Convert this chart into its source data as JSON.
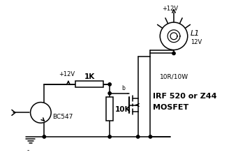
{
  "bg_color": "#ffffff",
  "line_color": "#000000",
  "label_1k": "1K",
  "label_10k": "10K",
  "label_bc547": "BC547",
  "label_resistor": "10R/10W",
  "label_mosfet": "IRF 520 or Z44",
  "label_mosfet2": "MOSFET",
  "label_l1": "L1",
  "label_12v_lamp": "12V",
  "label_v12_top": "+12V",
  "label_v12_left": "+12V",
  "label_b": "b",
  "label_gnd": "-"
}
